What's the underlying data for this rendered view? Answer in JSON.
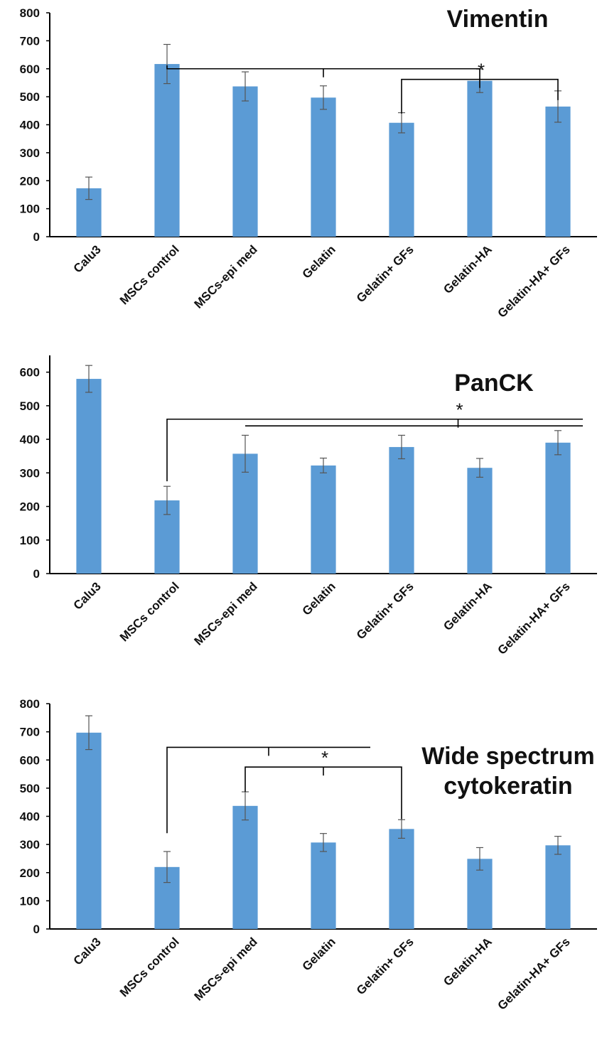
{
  "colors": {
    "bar": "#5b9bd5",
    "axis": "#000000",
    "bracket": "#000000",
    "error_bar": "#555555"
  },
  "chart_data": [
    {
      "type": "bar",
      "title": [
        "Vimentin"
      ],
      "categories": [
        "Calu3",
        "MSCs  control",
        "MSCs-epi med",
        "Gelatin",
        "Gelatin+ GFs",
        "Gelatin-HA",
        "Gelatin-HA+ GFs"
      ],
      "values": [
        173,
        617,
        537,
        497,
        407,
        557,
        465
      ],
      "errors": [
        40,
        70,
        52,
        42,
        36,
        42,
        56
      ],
      "ylim": [
        0,
        800
      ],
      "yticks": [
        0,
        100,
        200,
        300,
        400,
        500,
        600,
        700,
        800
      ],
      "xlabel": "",
      "ylabel": "",
      "grid": false,
      "annotations": [
        "*"
      ]
    },
    {
      "type": "bar",
      "title": [
        "PanCK"
      ],
      "categories": [
        "Calu3",
        "MSCs control",
        "MSCs-epi med",
        "Gelatin",
        "Gelatin+ GFs",
        "Gelatin-HA",
        "Gelatin-HA+ GFs"
      ],
      "values": [
        580,
        218,
        357,
        322,
        377,
        315,
        390
      ],
      "errors": [
        40,
        42,
        55,
        22,
        35,
        28,
        36
      ],
      "ylim": [
        0,
        650
      ],
      "yticks": [
        0,
        100,
        200,
        300,
        400,
        500,
        600
      ],
      "xlabel": "",
      "ylabel": "",
      "grid": false,
      "annotations": [
        "*"
      ]
    },
    {
      "type": "bar",
      "title": [
        "Wide spectrum",
        "cytokeratin"
      ],
      "categories": [
        "Calu3",
        "MSCs control",
        "MSCs-epi med",
        "Gelatin",
        "Gelatin+ GFs",
        "Gelatin-HA",
        "Gelatin-HA+ GFs"
      ],
      "values": [
        697,
        220,
        437,
        307,
        355,
        249,
        297
      ],
      "errors": [
        60,
        55,
        50,
        32,
        33,
        40,
        32
      ],
      "ylim": [
        0,
        800
      ],
      "yticks": [
        0,
        100,
        200,
        300,
        400,
        500,
        600,
        700,
        800
      ],
      "xlabel": "",
      "ylabel": "",
      "grid": false,
      "annotations": [
        "*"
      ]
    }
  ]
}
